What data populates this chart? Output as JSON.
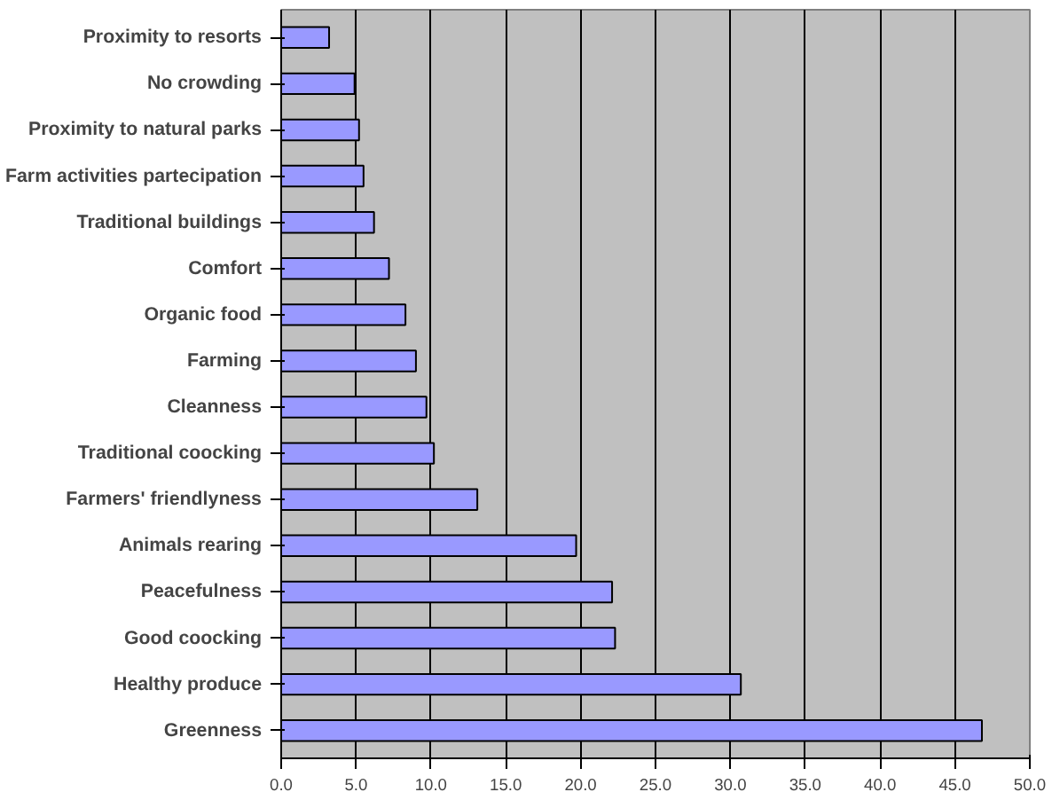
{
  "chart_data": {
    "type": "bar",
    "orientation": "horizontal",
    "categories": [
      "Proximity to resorts",
      "No crowding",
      "Proximity to natural parks",
      "Farm activities partecipation",
      "Traditional buildings",
      "Comfort",
      "Organic food",
      "Farming",
      "Cleanness",
      "Traditional coocking",
      "Farmers' friendlyness",
      "Animals rearing",
      "Peacefulness",
      "Good coocking",
      "Healthy produce",
      "Greenness"
    ],
    "values": [
      3.2,
      4.9,
      5.2,
      5.5,
      6.2,
      7.2,
      8.3,
      9.0,
      9.7,
      10.2,
      13.1,
      19.7,
      22.1,
      22.3,
      30.7,
      46.8
    ],
    "color": "#9999ff",
    "xlim": [
      0,
      50
    ],
    "xticks": [
      {
        "value": 0,
        "label": "0.0"
      },
      {
        "value": 5,
        "label": "5.0"
      },
      {
        "value": 10,
        "label": "10.0"
      },
      {
        "value": 15,
        "label": "15.0"
      },
      {
        "value": 20,
        "label": "20.0"
      },
      {
        "value": 25,
        "label": "25.0"
      },
      {
        "value": 30,
        "label": "30.0"
      },
      {
        "value": 35,
        "label": "35.0"
      },
      {
        "value": 40,
        "label": "40.0"
      },
      {
        "value": 45,
        "label": "45.0"
      },
      {
        "value": 50,
        "label": "50.0"
      }
    ],
    "grid": "x"
  }
}
